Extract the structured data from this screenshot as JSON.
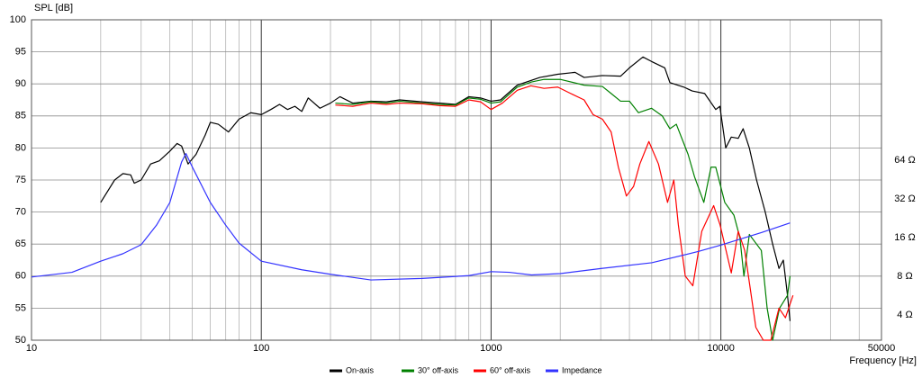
{
  "chart_data": {
    "type": "line",
    "y_label": "SPL [dB]",
    "x_label": "Frequency [Hz]",
    "xscale": "log",
    "xlim": [
      10,
      50000
    ],
    "xticks": [
      10,
      100,
      1000,
      10000,
      50000
    ],
    "xgrid_minor": [
      20,
      30,
      40,
      50,
      60,
      70,
      80,
      90,
      200,
      300,
      400,
      500,
      600,
      700,
      800,
      900,
      2000,
      3000,
      4000,
      5000,
      6000,
      7000,
      8000,
      9000,
      20000,
      30000,
      40000
    ],
    "ylim": [
      50,
      100
    ],
    "yticks": [
      50,
      55,
      60,
      65,
      70,
      75,
      80,
      85,
      90,
      95,
      100
    ],
    "y2scale": "log",
    "y2lim": [
      2.55,
      790
    ],
    "y2ticks": [
      {
        "value": 4,
        "label": "4 Ω"
      },
      {
        "value": 8,
        "label": "8 Ω"
      },
      {
        "value": 16,
        "label": "16 Ω"
      },
      {
        "value": 32,
        "label": "32 Ω"
      },
      {
        "value": 64,
        "label": "64 Ω"
      }
    ],
    "grid": true,
    "legend": "bottom",
    "series": [
      {
        "name": "On-axis",
        "color": "#000000",
        "x": [
          20,
          23,
          25,
          27,
          28,
          30,
          33,
          36,
          40,
          43,
          45,
          48,
          52,
          57,
          60,
          65,
          72,
          80,
          90,
          100,
          110,
          120,
          130,
          140,
          150,
          160,
          180,
          200,
          220,
          250,
          300,
          350,
          400,
          500,
          600,
          700,
          800,
          900,
          1000,
          1100,
          1300,
          1630,
          1950,
          2320,
          2540,
          3050,
          3660,
          4000,
          4580,
          4990,
          5700,
          6000,
          6900,
          7500,
          8500,
          9500,
          9900,
          10500,
          11100,
          11900,
          12500,
          13300,
          14300,
          15600,
          16800,
          17900,
          18700,
          19500,
          20000
        ],
        "values": [
          71.5,
          75,
          76,
          75.8,
          74.5,
          75,
          77.5,
          78,
          79.5,
          80.7,
          80.3,
          77.5,
          79,
          82,
          84,
          83.7,
          82.5,
          84.5,
          85.5,
          85.2,
          86,
          86.8,
          86,
          86.5,
          85.7,
          87.8,
          86.2,
          87,
          88,
          87,
          87.3,
          87.2,
          87.5,
          87.2,
          87,
          86.8,
          88,
          87.8,
          87.3,
          87.5,
          89.8,
          91,
          91.5,
          91.8,
          91,
          91.3,
          91.2,
          92.5,
          94.2,
          93.5,
          92.5,
          90.2,
          89.5,
          88.9,
          88.5,
          86,
          86.5,
          80,
          81.7,
          81.5,
          83,
          80,
          75,
          70,
          65,
          61.2,
          62.5,
          57,
          53
        ]
      },
      {
        "name": "30° off-axis",
        "color": "#008000",
        "x": [
          210,
          250,
          300,
          350,
          400,
          500,
          600,
          700,
          800,
          900,
          1000,
          1100,
          1300,
          1500,
          1700,
          2000,
          2540,
          3050,
          3330,
          3660,
          4000,
          4380,
          4990,
          5560,
          6000,
          6400,
          7200,
          7680,
          8430,
          9060,
          9500,
          10400,
          11400,
          12100,
          12600,
          13300,
          15000,
          15900,
          16800,
          18000,
          19500,
          20000
        ],
        "values": [
          87,
          86.8,
          87.2,
          87,
          87.3,
          87,
          86.8,
          86.7,
          87.8,
          87.6,
          87,
          87.2,
          89.5,
          90.3,
          90.7,
          90.7,
          89.8,
          89.6,
          88.5,
          87.3,
          87.3,
          85.5,
          86.2,
          85,
          83,
          83.7,
          79,
          75.5,
          71.5,
          77,
          77,
          71.5,
          69.5,
          66,
          60,
          66.5,
          64,
          55,
          50,
          55,
          57,
          60
        ]
      },
      {
        "name": "60° off-axis",
        "color": "#ff0000",
        "x": [
          210,
          250,
          300,
          350,
          400,
          500,
          600,
          700,
          800,
          900,
          1000,
          1120,
          1300,
          1490,
          1700,
          1950,
          2220,
          2540,
          2780,
          3050,
          3330,
          3580,
          3880,
          4170,
          4440,
          4860,
          5350,
          5860,
          6240,
          6530,
          7000,
          7550,
          8260,
          9300,
          9920,
          11100,
          11900,
          12700,
          14200,
          15300,
          16500,
          17900,
          19100,
          20600
        ],
        "values": [
          86.7,
          86.5,
          87,
          86.8,
          87,
          86.9,
          86.6,
          86.5,
          87.5,
          87.2,
          86,
          87,
          89,
          89.7,
          89.3,
          89.5,
          88.5,
          87.5,
          85.2,
          84.5,
          82.5,
          77,
          72.5,
          74,
          77.5,
          81,
          77.5,
          71.5,
          75,
          68,
          60,
          58.5,
          67,
          71,
          68,
          60.5,
          67,
          64,
          52,
          50,
          50,
          55,
          53.5,
          57
        ]
      },
      {
        "name": "Impedance",
        "color": "#3333ff",
        "axis": "y2",
        "x": [
          10,
          15,
          20,
          25,
          30,
          35,
          40,
          45,
          47,
          50,
          60,
          70,
          80,
          100,
          150,
          200,
          300,
          500,
          800,
          1000,
          1200,
          1500,
          2000,
          3000,
          5000,
          8000,
          10000,
          15000,
          20000
        ],
        "values": [
          7.9,
          8.6,
          10.5,
          12,
          14.1,
          20,
          30,
          62,
          72,
          57,
          30,
          20,
          14.5,
          10.5,
          9,
          8.3,
          7.5,
          7.7,
          8.1,
          8.7,
          8.6,
          8.2,
          8.4,
          9.2,
          10.2,
          12.5,
          14,
          17.5,
          20.8
        ]
      }
    ]
  }
}
